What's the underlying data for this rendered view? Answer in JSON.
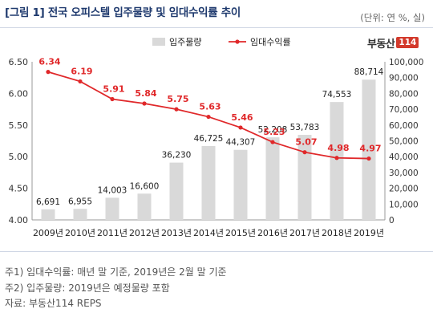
{
  "title": "[그림 1] 전국 오피스텔 입주물량 및 임대수익률 추이",
  "unit": "(단위: 연 %, 실)",
  "logo": {
    "text": "부동산",
    "number": "114"
  },
  "colors": {
    "bar": "#d9d9d9",
    "line": "#e0282a",
    "title": "#1f3a6e"
  },
  "chart_data": {
    "type": "bar+line",
    "categories": [
      "2009년",
      "2010년",
      "2011년",
      "2012년",
      "2013년",
      "2014년",
      "2015년",
      "2016년",
      "2017년",
      "2018년",
      "2019년"
    ],
    "series": [
      {
        "name": "입주물량",
        "type": "bar",
        "axis": "right",
        "values": [
          6691,
          6955,
          14003,
          16600,
          36230,
          46725,
          44307,
          52208,
          53783,
          74553,
          88714
        ],
        "labels": [
          "6,691",
          "6,955",
          "14,003",
          "16,600",
          "36,230",
          "46,725",
          "44,307",
          "52,208",
          "53,783",
          "74,553",
          "88,714"
        ]
      },
      {
        "name": "임대수익률",
        "type": "line",
        "axis": "left",
        "values": [
          6.34,
          6.19,
          5.91,
          5.84,
          5.75,
          5.63,
          5.46,
          5.23,
          5.07,
          4.98,
          4.97
        ],
        "labels": [
          "6.34",
          "6.19",
          "5.91",
          "5.84",
          "5.75",
          "5.63",
          "5.46",
          "5.23",
          "5.07",
          "4.98",
          "4.97"
        ]
      }
    ],
    "y_left": {
      "range": [
        4.0,
        6.5
      ],
      "ticks": [
        "4.00",
        "4.50",
        "5.00",
        "5.50",
        "6.00",
        "6.50"
      ]
    },
    "y_right": {
      "range": [
        0,
        100000
      ],
      "ticks": [
        "0",
        "10,000",
        "20,000",
        "30,000",
        "40,000",
        "50,000",
        "60,000",
        "70,000",
        "80,000",
        "90,000",
        "100,000"
      ]
    },
    "legend": {
      "position": "top-center"
    },
    "grid": false
  },
  "notes": [
    "주1) 임대수익률: 매년 말 기준, 2019년은 2월 말 기준",
    "주2) 입주물량: 2019년은 예정물량 포함",
    "자료: 부동산114 REPS"
  ]
}
